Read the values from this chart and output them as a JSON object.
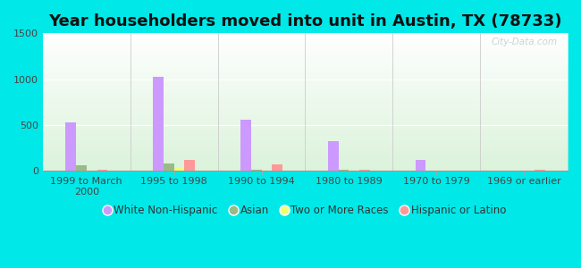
{
  "title": "Year householders moved into unit in Austin, TX (78733)",
  "categories": [
    "1999 to March\n2000",
    "1995 to 1998",
    "1990 to 1994",
    "1980 to 1989",
    "1970 to 1979",
    "1969 or earlier"
  ],
  "series": {
    "White Non-Hispanic": [
      530,
      1025,
      555,
      325,
      115,
      0
    ],
    "Asian": [
      55,
      75,
      10,
      10,
      0,
      0
    ],
    "Two or More Races": [
      5,
      30,
      5,
      5,
      0,
      0
    ],
    "Hispanic or Latino": [
      15,
      115,
      65,
      15,
      0,
      15
    ]
  },
  "colors": {
    "White Non-Hispanic": "#cc99ff",
    "Asian": "#99bb88",
    "Two or More Races": "#eeff77",
    "Hispanic or Latino": "#ff9999"
  },
  "ylim": [
    0,
    1500
  ],
  "yticks": [
    0,
    500,
    1000,
    1500
  ],
  "bar_width": 0.12,
  "background_color_top": "#f0fff0",
  "background_color_bottom": "#d0f0d0",
  "background_color_fig": "#00e8e8",
  "watermark": "City-Data.com",
  "title_fontsize": 13,
  "legend_fontsize": 8.5
}
